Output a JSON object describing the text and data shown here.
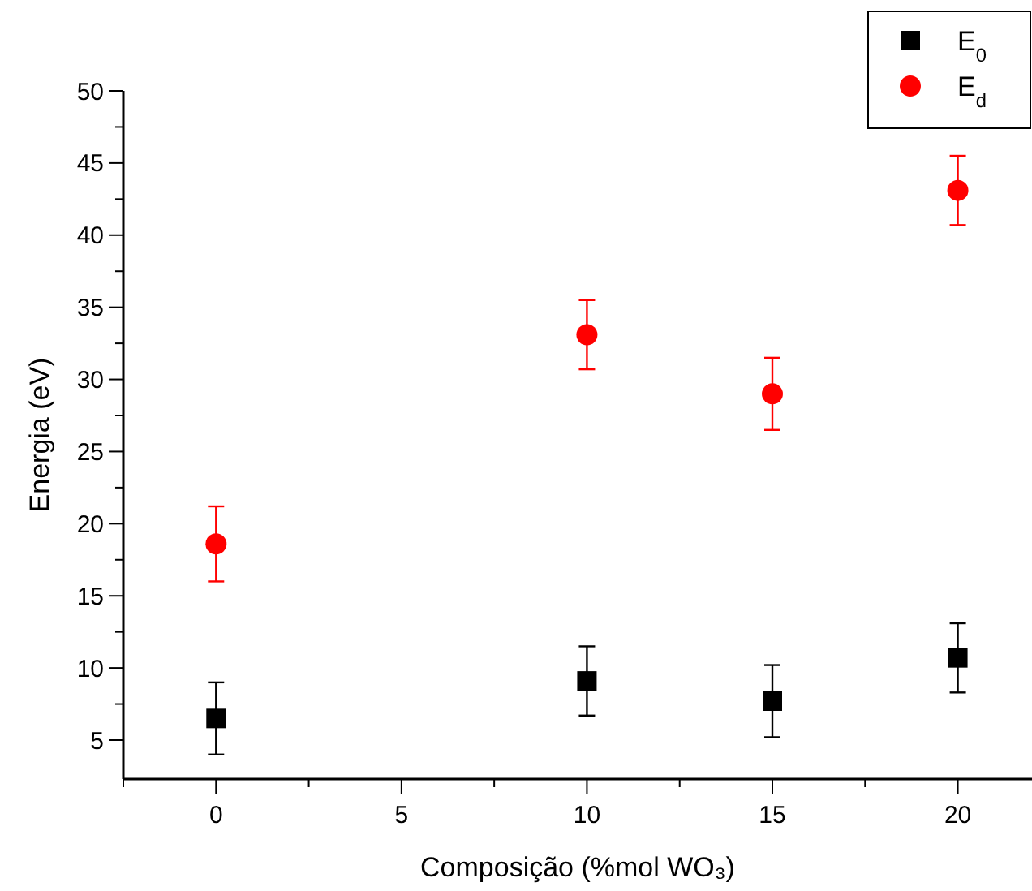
{
  "chart_data": {
    "type": "scatter",
    "xlabel": "Composição (%mol WO₃)",
    "ylabel": "Energia (eV)",
    "x": [
      0,
      10,
      15,
      20
    ],
    "series": [
      {
        "name": "E$_{0}$",
        "color": "#000000",
        "marker": "square",
        "values": [
          6.5,
          9.1,
          7.7,
          10.7
        ],
        "errors": [
          2.5,
          2.4,
          2.5,
          2.4
        ]
      },
      {
        "name": "E$_{d}$",
        "color": "#ff0000",
        "marker": "circle",
        "values": [
          18.6,
          33.1,
          29.0,
          43.1
        ],
        "errors": [
          2.6,
          2.4,
          2.5,
          2.4
        ]
      }
    ],
    "xlim": [
      -2.5,
      22
    ],
    "ylim": [
      2.3,
      50
    ],
    "xticks": [
      {
        "value": -2.5,
        "label": null
      },
      0,
      {
        "value": 2.5,
        "label": null
      },
      5,
      {
        "value": 7.5,
        "label": null
      },
      10,
      {
        "value": 12.5,
        "label": null
      },
      15,
      {
        "value": 17.5,
        "label": null
      },
      20
    ],
    "yticks": [
      5,
      {
        "value": 7.5,
        "label": null
      },
      10,
      {
        "value": 12.5,
        "label": null
      },
      15,
      {
        "value": 17.5,
        "label": null
      },
      20,
      {
        "value": 22.5,
        "label": null
      },
      25,
      {
        "value": 27.5,
        "label": null
      },
      30,
      {
        "value": 32.5,
        "label": null
      },
      35,
      {
        "value": 37.5,
        "label": null
      },
      40,
      {
        "value": 42.5,
        "label": null
      },
      45,
      {
        "value": 47.5,
        "label": null
      },
      50
    ],
    "legend": "top right",
    "grid": false
  }
}
